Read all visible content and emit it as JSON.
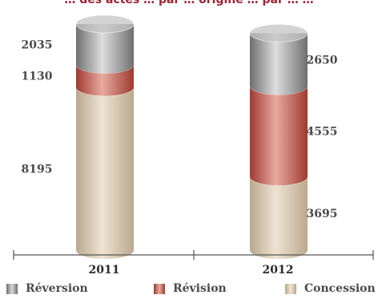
{
  "chart_data": {
    "type": "bar",
    "stacked": true,
    "title": "… des actes … par … origine … par … …",
    "categories": [
      "2011",
      "2012"
    ],
    "series": [
      {
        "name": "Concession",
        "values": [
          8195,
          3695
        ],
        "color": "#d9c8ad"
      },
      {
        "name": "Révision",
        "values": [
          1130,
          4555
        ],
        "color": "#c0584c"
      },
      {
        "name": "Réversion",
        "values": [
          2035,
          2650
        ],
        "color": "#9a9a9a"
      }
    ],
    "legend_position": "bottom",
    "grid": false
  }
}
